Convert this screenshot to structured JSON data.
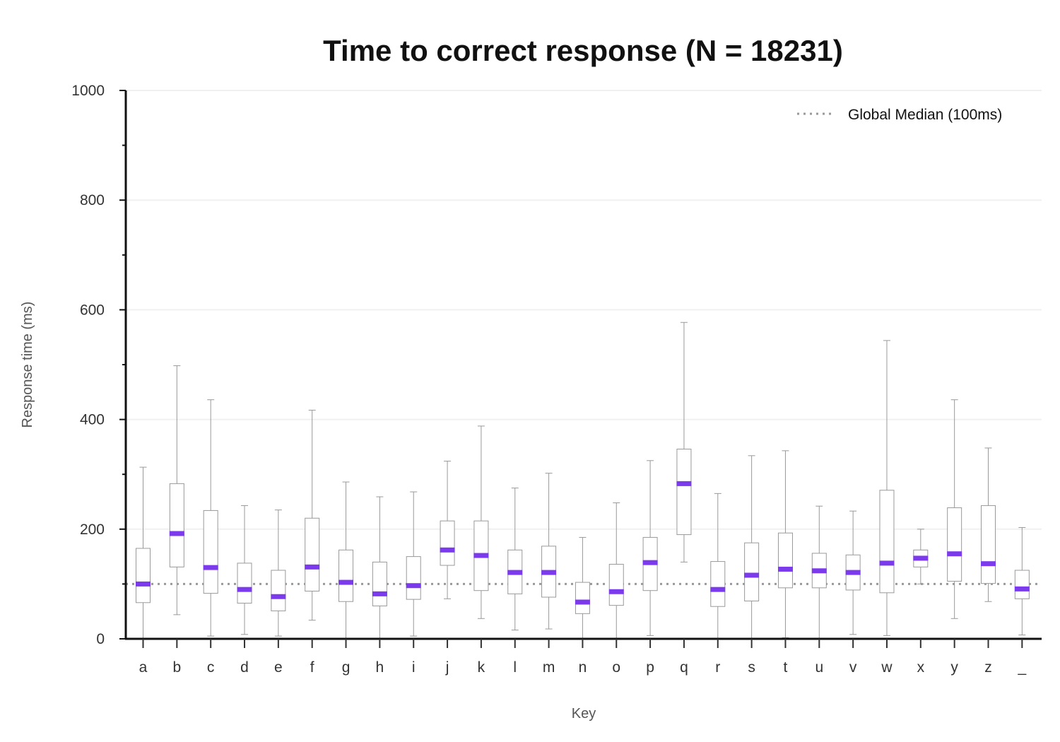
{
  "chart_data": {
    "type": "box",
    "title": "Time to correct response (N = 18231)",
    "xlabel": "Key",
    "ylabel": "Response time (ms)",
    "ylim": [
      0,
      1000
    ],
    "yticks": [
      0,
      200,
      400,
      600,
      800,
      1000
    ],
    "grid": "horizontal",
    "legend_position": "top-right",
    "reference_line": {
      "label": "Global Median (100ms)",
      "value": 100
    },
    "colors": {
      "median": "#7c3aed",
      "reference": "#999999",
      "box": "#999999",
      "axis": "#111111"
    },
    "categories": [
      "a",
      "b",
      "c",
      "d",
      "e",
      "f",
      "g",
      "h",
      "i",
      "j",
      "k",
      "l",
      "m",
      "n",
      "o",
      "p",
      "q",
      "r",
      "s",
      "t",
      "u",
      "v",
      "w",
      "x",
      "y",
      "z",
      "_"
    ],
    "boxes": [
      {
        "key": "a",
        "whisker_low": 0,
        "q1": 66,
        "median": 100,
        "q3": 165,
        "whisker_high": 313
      },
      {
        "key": "b",
        "whisker_low": 44,
        "q1": 131,
        "median": 192,
        "q3": 283,
        "whisker_high": 498
      },
      {
        "key": "c",
        "whisker_low": 5,
        "q1": 83,
        "median": 130,
        "q3": 234,
        "whisker_high": 436
      },
      {
        "key": "d",
        "whisker_low": 8,
        "q1": 65,
        "median": 90,
        "q3": 138,
        "whisker_high": 243
      },
      {
        "key": "e",
        "whisker_low": 5,
        "q1": 51,
        "median": 77,
        "q3": 125,
        "whisker_high": 235
      },
      {
        "key": "f",
        "whisker_low": 34,
        "q1": 87,
        "median": 131,
        "q3": 220,
        "whisker_high": 417
      },
      {
        "key": "g",
        "whisker_low": 1,
        "q1": 68,
        "median": 103,
        "q3": 162,
        "whisker_high": 286
      },
      {
        "key": "h",
        "whisker_low": 1,
        "q1": 60,
        "median": 82,
        "q3": 140,
        "whisker_high": 259
      },
      {
        "key": "i",
        "whisker_low": 5,
        "q1": 72,
        "median": 97,
        "q3": 150,
        "whisker_high": 268
      },
      {
        "key": "j",
        "whisker_low": 73,
        "q1": 134,
        "median": 162,
        "q3": 215,
        "whisker_high": 324
      },
      {
        "key": "k",
        "whisker_low": 37,
        "q1": 88,
        "median": 152,
        "q3": 215,
        "whisker_high": 388
      },
      {
        "key": "l",
        "whisker_low": 16,
        "q1": 82,
        "median": 121,
        "q3": 162,
        "whisker_high": 275
      },
      {
        "key": "m",
        "whisker_low": 18,
        "q1": 76,
        "median": 121,
        "q3": 169,
        "whisker_high": 302
      },
      {
        "key": "n",
        "whisker_low": 0,
        "q1": 46,
        "median": 67,
        "q3": 103,
        "whisker_high": 185
      },
      {
        "key": "o",
        "whisker_low": 1,
        "q1": 61,
        "median": 86,
        "q3": 136,
        "whisker_high": 248
      },
      {
        "key": "p",
        "whisker_low": 6,
        "q1": 88,
        "median": 139,
        "q3": 185,
        "whisker_high": 325
      },
      {
        "key": "q",
        "whisker_low": 140,
        "q1": 190,
        "median": 283,
        "q3": 346,
        "whisker_high": 577
      },
      {
        "key": "r",
        "whisker_low": 1,
        "q1": 59,
        "median": 90,
        "q3": 141,
        "whisker_high": 265
      },
      {
        "key": "s",
        "whisker_low": 1,
        "q1": 69,
        "median": 116,
        "q3": 175,
        "whisker_high": 334
      },
      {
        "key": "t",
        "whisker_low": 2,
        "q1": 93,
        "median": 127,
        "q3": 193,
        "whisker_high": 343
      },
      {
        "key": "u",
        "whisker_low": 1,
        "q1": 93,
        "median": 124,
        "q3": 156,
        "whisker_high": 242
      },
      {
        "key": "v",
        "whisker_low": 8,
        "q1": 89,
        "median": 121,
        "q3": 153,
        "whisker_high": 233
      },
      {
        "key": "w",
        "whisker_low": 6,
        "q1": 84,
        "median": 138,
        "q3": 271,
        "whisker_high": 544
      },
      {
        "key": "x",
        "whisker_low": 100,
        "q1": 131,
        "median": 147,
        "q3": 162,
        "whisker_high": 200
      },
      {
        "key": "y",
        "whisker_low": 37,
        "q1": 105,
        "median": 155,
        "q3": 239,
        "whisker_high": 436
      },
      {
        "key": "z",
        "whisker_low": 68,
        "q1": 101,
        "median": 137,
        "q3": 243,
        "whisker_high": 348
      },
      {
        "key": "_",
        "whisker_low": 7,
        "q1": 73,
        "median": 91,
        "q3": 125,
        "whisker_high": 203
      }
    ]
  }
}
